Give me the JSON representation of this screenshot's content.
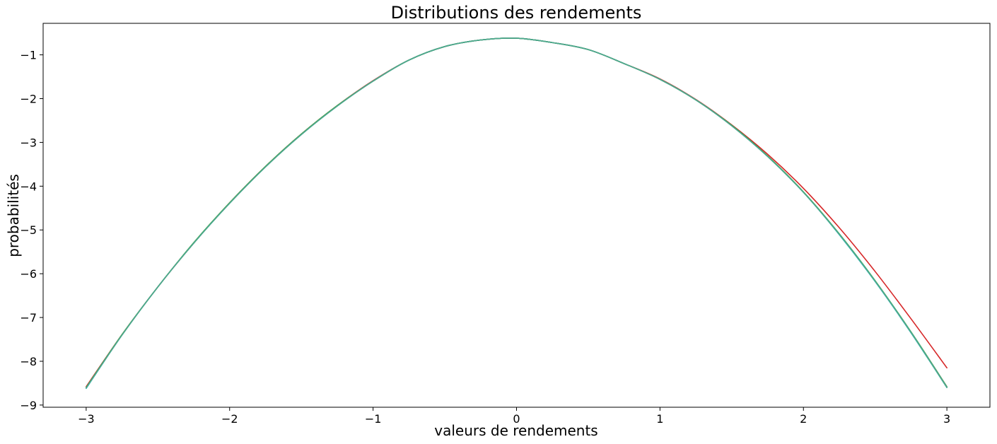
{
  "chart_data": {
    "type": "line",
    "title": "Distributions des rendements",
    "xlabel": "valeurs de rendements",
    "ylabel": "probabilités",
    "xlim": [
      -3.3,
      3.3
    ],
    "ylim": [
      -9.05,
      -0.28
    ],
    "xticks": [
      -3,
      -2,
      -1,
      0,
      1,
      2,
      3
    ],
    "xtick_labels": [
      "−3",
      "−2",
      "−1",
      "0",
      "1",
      "2",
      "3"
    ],
    "yticks": [
      -9,
      -8,
      -7,
      -6,
      -5,
      -4,
      -3,
      -2,
      -1
    ],
    "ytick_labels": [
      "−9",
      "−8",
      "−7",
      "−6",
      "−5",
      "−4",
      "−3",
      "−2",
      "−1"
    ],
    "grid": false,
    "legend": "none",
    "series": [
      {
        "color": "#d62728",
        "points": [
          [
            -3.0,
            -8.58
          ],
          [
            -2.75,
            -7.39
          ],
          [
            -2.5,
            -6.3
          ],
          [
            -2.25,
            -5.3
          ],
          [
            -2.0,
            -4.38
          ],
          [
            -1.75,
            -3.55
          ],
          [
            -1.5,
            -2.81
          ],
          [
            -1.25,
            -2.16
          ],
          [
            -1.0,
            -1.59
          ],
          [
            -0.75,
            -1.12
          ],
          [
            -0.5,
            -0.81
          ],
          [
            -0.25,
            -0.66
          ],
          [
            0.0,
            -0.62
          ],
          [
            0.25,
            -0.72
          ],
          [
            0.5,
            -0.88
          ],
          [
            0.75,
            -1.2
          ],
          [
            1.0,
            -1.55
          ],
          [
            1.25,
            -2.02
          ],
          [
            1.5,
            -2.6
          ],
          [
            1.75,
            -3.27
          ],
          [
            2.0,
            -4.05
          ],
          [
            2.25,
            -4.95
          ],
          [
            2.5,
            -5.95
          ],
          [
            2.75,
            -7.03
          ],
          [
            3.0,
            -8.15
          ]
        ]
      },
      {
        "color": "#17becf",
        "points": [
          [
            -3.0,
            -8.62
          ],
          [
            -2.75,
            -7.4
          ],
          [
            -2.5,
            -6.3
          ],
          [
            -2.25,
            -5.3
          ],
          [
            -2.0,
            -4.39
          ],
          [
            -1.75,
            -3.56
          ],
          [
            -1.5,
            -2.82
          ],
          [
            -1.25,
            -2.17
          ],
          [
            -1.0,
            -1.6
          ],
          [
            -0.75,
            -1.12
          ],
          [
            -0.5,
            -0.81
          ],
          [
            -0.25,
            -0.66
          ],
          [
            0.0,
            -0.62
          ],
          [
            0.25,
            -0.72
          ],
          [
            0.5,
            -0.88
          ],
          [
            0.75,
            -1.2
          ],
          [
            1.0,
            -1.56
          ],
          [
            1.25,
            -2.03
          ],
          [
            1.5,
            -2.62
          ],
          [
            1.75,
            -3.32
          ],
          [
            2.0,
            -4.14
          ],
          [
            2.25,
            -5.11
          ],
          [
            2.5,
            -6.18
          ],
          [
            2.75,
            -7.35
          ],
          [
            3.0,
            -8.6
          ]
        ]
      },
      {
        "color": "#2ca02c",
        "points": [
          [
            -3.0,
            -8.6
          ],
          [
            -2.75,
            -7.39
          ],
          [
            -2.5,
            -6.3
          ],
          [
            -2.25,
            -5.29
          ],
          [
            -2.0,
            -4.38
          ],
          [
            -1.75,
            -3.55
          ],
          [
            -1.5,
            -2.81
          ],
          [
            -1.25,
            -2.16
          ],
          [
            -1.0,
            -1.6
          ],
          [
            -0.75,
            -1.12
          ],
          [
            -0.5,
            -0.81
          ],
          [
            -0.25,
            -0.66
          ],
          [
            0.0,
            -0.62
          ],
          [
            0.25,
            -0.72
          ],
          [
            0.5,
            -0.88
          ],
          [
            0.75,
            -1.2
          ],
          [
            1.0,
            -1.56
          ],
          [
            1.25,
            -2.03
          ],
          [
            1.5,
            -2.61
          ],
          [
            1.75,
            -3.31
          ],
          [
            2.0,
            -4.13
          ],
          [
            2.25,
            -5.09
          ],
          [
            2.5,
            -6.16
          ],
          [
            2.75,
            -7.33
          ],
          [
            3.0,
            -8.58
          ]
        ]
      },
      {
        "color": "#7f7f7f",
        "points": [
          [
            -3.0,
            -8.61
          ],
          [
            -2.75,
            -7.4
          ],
          [
            -2.5,
            -6.3
          ],
          [
            -2.25,
            -5.3
          ],
          [
            -2.0,
            -4.39
          ],
          [
            -1.75,
            -3.56
          ],
          [
            -1.5,
            -2.82
          ],
          [
            -1.25,
            -2.17
          ],
          [
            -1.0,
            -1.6
          ],
          [
            -0.75,
            -1.12
          ],
          [
            -0.5,
            -0.81
          ],
          [
            -0.25,
            -0.66
          ],
          [
            0.0,
            -0.62
          ],
          [
            0.25,
            -0.72
          ],
          [
            0.5,
            -0.88
          ],
          [
            0.75,
            -1.2
          ],
          [
            1.0,
            -1.56
          ],
          [
            1.25,
            -2.03
          ],
          [
            1.5,
            -2.62
          ],
          [
            1.75,
            -3.32
          ],
          [
            2.0,
            -4.14
          ],
          [
            2.25,
            -5.1
          ],
          [
            2.5,
            -6.17
          ],
          [
            2.75,
            -7.34
          ],
          [
            3.0,
            -8.59
          ]
        ]
      },
      {
        "color": "#4aab8e",
        "points": [
          [
            -3.0,
            -8.61
          ],
          [
            -2.75,
            -7.4
          ],
          [
            -2.5,
            -6.3
          ],
          [
            -2.25,
            -5.3
          ],
          [
            -2.0,
            -4.39
          ],
          [
            -1.75,
            -3.56
          ],
          [
            -1.5,
            -2.82
          ],
          [
            -1.25,
            -2.17
          ],
          [
            -1.0,
            -1.6
          ],
          [
            -0.75,
            -1.12
          ],
          [
            -0.5,
            -0.81
          ],
          [
            -0.25,
            -0.66
          ],
          [
            0.0,
            -0.62
          ],
          [
            0.25,
            -0.72
          ],
          [
            0.5,
            -0.88
          ],
          [
            0.75,
            -1.2
          ],
          [
            1.0,
            -1.56
          ],
          [
            1.25,
            -2.03
          ],
          [
            1.5,
            -2.62
          ],
          [
            1.75,
            -3.32
          ],
          [
            2.0,
            -4.14
          ],
          [
            2.25,
            -5.1
          ],
          [
            2.5,
            -6.17
          ],
          [
            2.75,
            -7.34
          ],
          [
            3.0,
            -8.6
          ]
        ]
      }
    ]
  }
}
